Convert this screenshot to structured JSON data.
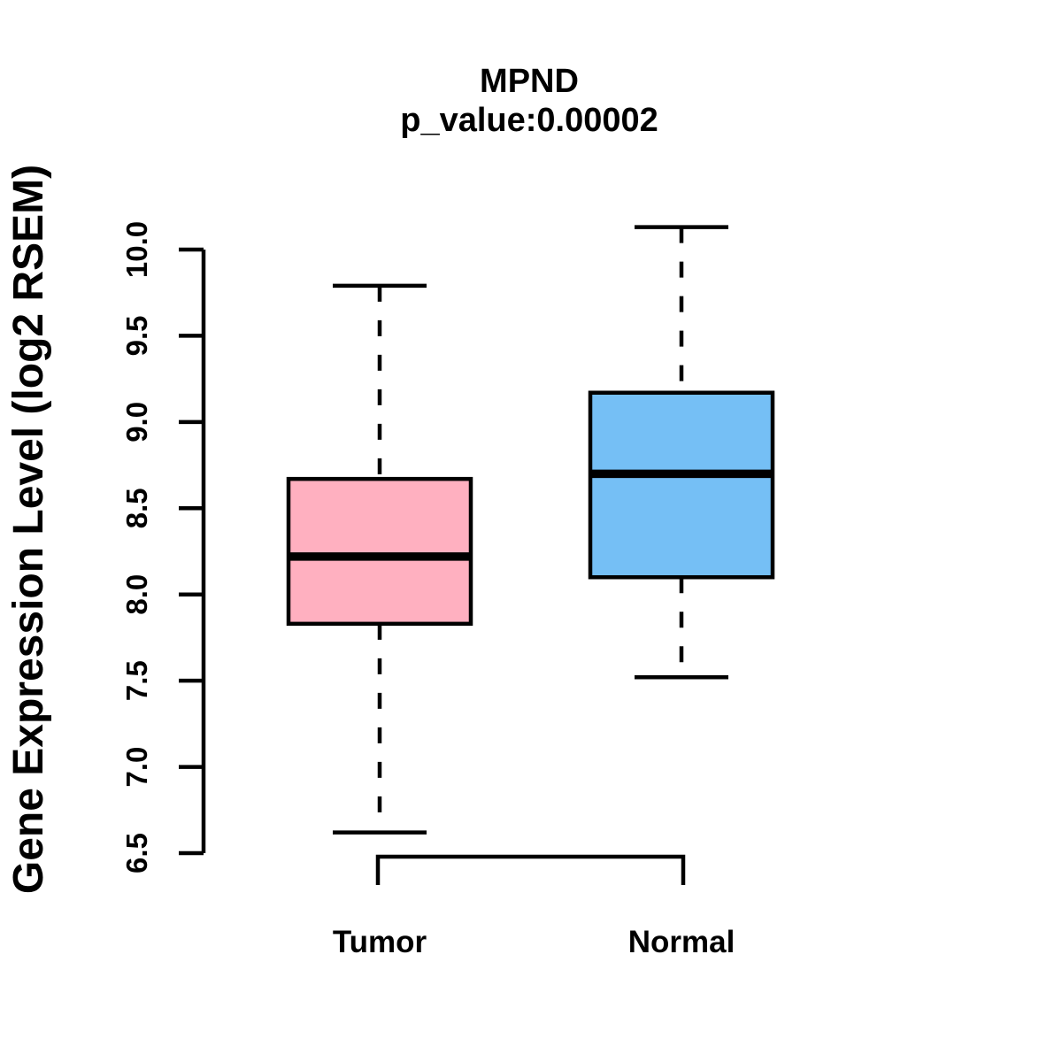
{
  "title": "MPND",
  "subtitle": "p_value:0.00002",
  "p_value": "0.00002",
  "chart_data": {
    "type": "boxplot",
    "title": "MPND",
    "subtitle": "p_value:0.00002",
    "ylabel": "Gene Expression Level (log2 RSEM)",
    "xlabel": "",
    "categories": [
      "Tumor",
      "Normal"
    ],
    "ylim": [
      6.5,
      10.0
    ],
    "yticks": [
      10.0,
      9.5,
      9.0,
      8.5,
      8.0,
      7.5,
      7.0,
      6.5
    ],
    "ytick_labels": [
      "10.0",
      "9.5",
      "9.0",
      "8.5",
      "8.0",
      "7.5",
      "7.0",
      "6.5"
    ],
    "grid": false,
    "legend": "none",
    "series": [
      {
        "name": "Tumor",
        "whisker_low": 6.62,
        "q1": 7.83,
        "median": 8.22,
        "q3": 8.67,
        "whisker_high": 9.79,
        "fill_color": "#FFB0C0"
      },
      {
        "name": "Normal",
        "whisker_low": 7.52,
        "q1": 8.1,
        "median": 8.7,
        "q3": 9.17,
        "whisker_high": 10.13,
        "fill_color": "#75BFF5"
      }
    ],
    "style": {
      "box_border_color": "#000000",
      "median_color": "#000000",
      "whisker_style": "dashed",
      "axis_color": "#000000",
      "background": "#FFFFFF"
    }
  }
}
